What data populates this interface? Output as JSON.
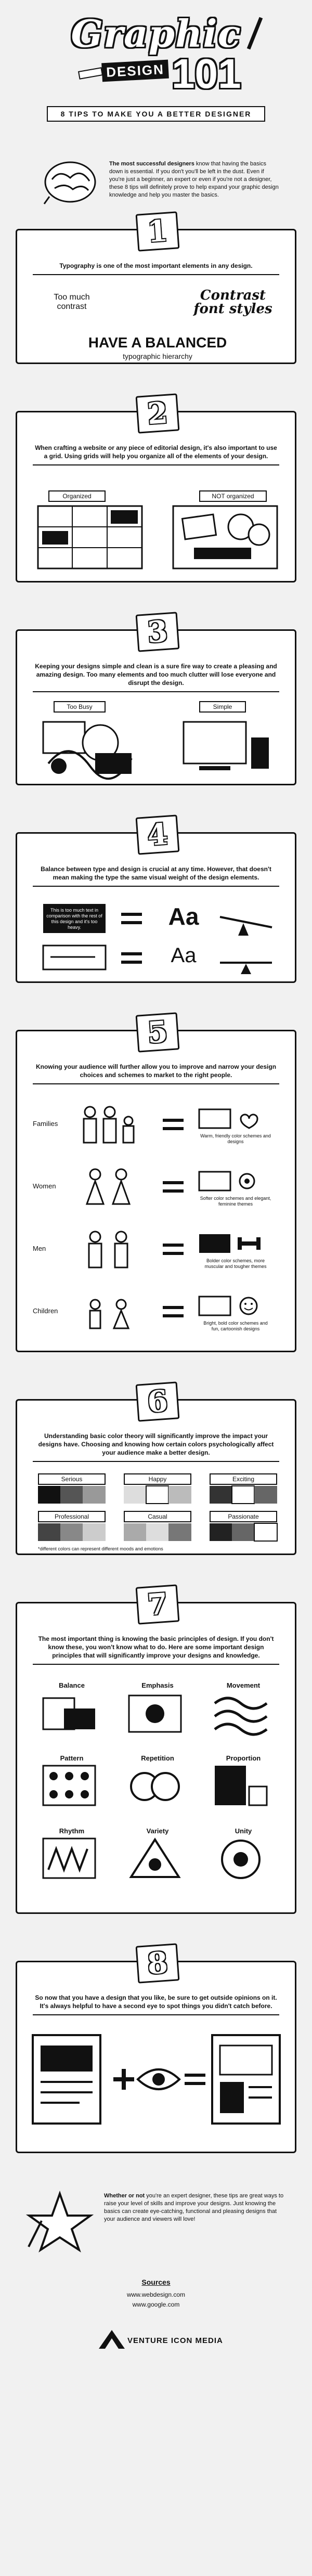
{
  "header": {
    "title": "Graphic",
    "banner": "DESIGN",
    "number": "101",
    "tagline": "8 TIPS TO MAKE YOU A BETTER DESIGNER"
  },
  "intro": {
    "bold": "The most successful designers",
    "text": " know that having the basics down is essential. If you don't you'll be left in the dust. Even if you're just a beginner, an expert or even if you're not a designer, these 8 tips will definitely prove to help expand your graphic design knowledge and help you master the basics."
  },
  "sections": [
    {
      "num": "1",
      "lead": "Typography is one of the most important elements in any design.",
      "left_label": "Too much contrast",
      "right_label": "Contrast font styles",
      "bottom_big": "HAVE A BALANCED",
      "bottom_small": "typographic hierarchy"
    },
    {
      "num": "2",
      "lead": "When crafting a website or any piece of editorial design, it's also important to use a grid. Using grids will help you organize all of the elements of your design.",
      "left_label": "Organized",
      "right_label": "NOT organized"
    },
    {
      "num": "3",
      "lead": "Keeping your designs simple and clean is a sure fire way to create a pleasing and amazing design. Too many elements and too much clutter will lose everyone and disrupt the design.",
      "left_label": "Too Busy",
      "right_label": "Simple"
    },
    {
      "num": "4",
      "lead": "Balance between type and design is crucial at any time. However, that doesn't mean making the type the same visual weight of the design elements.",
      "row1_note": "This is too much text in comparison with the rest of this design and it's too heavy.",
      "row1_type": "Aa",
      "row2_type": "Aa"
    },
    {
      "num": "5",
      "lead": "Knowing your audience will further allow you to improve and narrow your design choices and schemes to market to the right people.",
      "rows": [
        {
          "label": "Families",
          "note": "Warm, friendly color schemes and designs"
        },
        {
          "label": "Women",
          "note": "Softer color schemes and elegant, feminine themes"
        },
        {
          "label": "Men",
          "note": "Bolder color schemes, more muscular and tougher themes"
        },
        {
          "label": "Children",
          "note": "Bright, bold color schemes and fun, cartoonish designs"
        }
      ]
    },
    {
      "num": "6",
      "lead": "Understanding basic color theory will significantly improve the impact your designs have. Choosing and knowing how certain colors psychologically affect your audience make a better design.",
      "moods": [
        "Serious",
        "Happy",
        "Exciting",
        "Professional",
        "Casual",
        "Passionate"
      ],
      "footnote": "*different colors can represent different moods and emotions"
    },
    {
      "num": "7",
      "lead": "The most important thing is knowing the basic principles of design. If you don't know these, you won't know what to do. Here are some important design principles that will significantly improve your designs and knowledge.",
      "principles": [
        "Balance",
        "Emphasis",
        "Movement",
        "Pattern",
        "Repetition",
        "Proportion",
        "Rhythm",
        "Variety",
        "Unity"
      ]
    },
    {
      "num": "8",
      "lead": "So now that you have a design that you like, be sure to get outside opinions on it. It's always helpful to have a second eye to spot things you didn't catch before."
    }
  ],
  "footer": {
    "bold": "Whether or not",
    "text": " you're an expert designer, these tips are great ways to raise your level of skills and improve your designs. Just knowing the basics can create eye-catching, functional and pleasing designs that your audience and viewers will love!",
    "sources_label": "Sources",
    "source1": "www.webdesign.com",
    "source2": "www.google.com",
    "brand": "VENTURE ICON MEDIA"
  }
}
